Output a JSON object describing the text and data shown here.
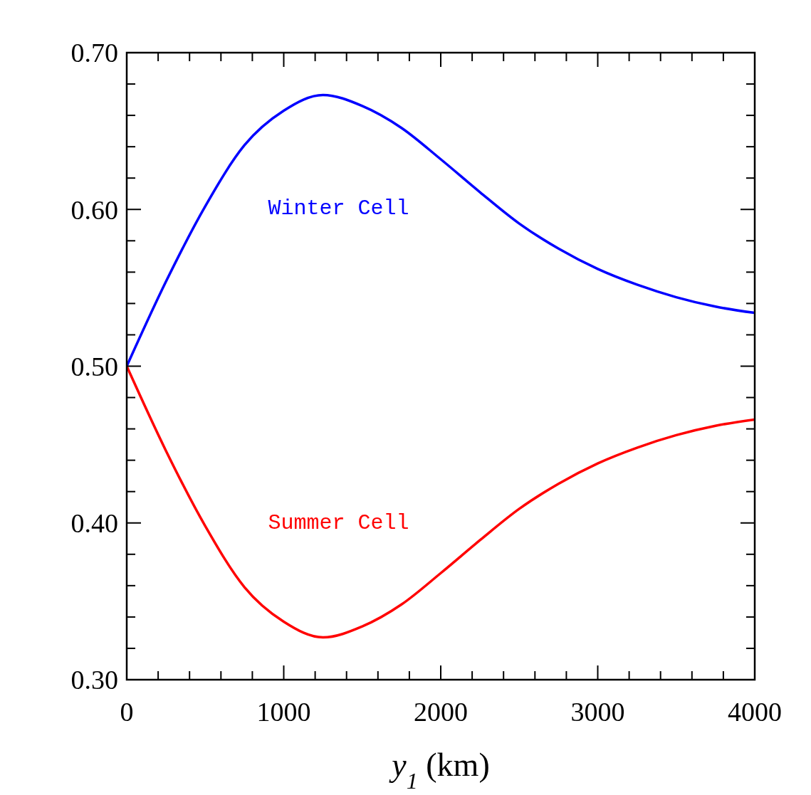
{
  "chart_data": {
    "type": "line",
    "xlabel": "y$_{1}$ (km)",
    "x": [
      0,
      250,
      500,
      750,
      1000,
      1250,
      1500,
      1750,
      2000,
      2250,
      2500,
      2750,
      3000,
      3250,
      3500,
      3750,
      4000
    ],
    "series": [
      {
        "name": "Winter Cell",
        "color": "#0000ff",
        "values": [
          0.5,
          0.554,
          0.602,
          0.641,
          0.663,
          0.673,
          0.666,
          0.652,
          0.632,
          0.611,
          0.591,
          0.575,
          0.562,
          0.552,
          0.544,
          0.538,
          0.534
        ]
      },
      {
        "name": "Summer Cell",
        "color": "#ff0000",
        "values": [
          0.5,
          0.446,
          0.398,
          0.359,
          0.337,
          0.327,
          0.334,
          0.348,
          0.368,
          0.389,
          0.409,
          0.425,
          0.438,
          0.448,
          0.456,
          0.462,
          0.466
        ]
      }
    ],
    "xlim": [
      0,
      4000
    ],
    "ylim": [
      0.3,
      0.7
    ],
    "xticks": [
      0,
      {
        "value": 200,
        "label": null
      },
      {
        "value": 400,
        "label": null
      },
      {
        "value": 600,
        "label": null
      },
      {
        "value": 800,
        "label": null
      },
      1000,
      {
        "value": 1200,
        "label": null
      },
      {
        "value": 1400,
        "label": null
      },
      {
        "value": 1600,
        "label": null
      },
      {
        "value": 1800,
        "label": null
      },
      2000,
      {
        "value": 2200,
        "label": null
      },
      {
        "value": 2400,
        "label": null
      },
      {
        "value": 2600,
        "label": null
      },
      {
        "value": 2800,
        "label": null
      },
      3000,
      {
        "value": 3200,
        "label": null
      },
      {
        "value": 3400,
        "label": null
      },
      {
        "value": 3600,
        "label": null
      },
      {
        "value": 3800,
        "label": null
      },
      4000
    ],
    "yticks": [
      {
        "value": 0.3,
        "label": "0.30"
      },
      {
        "value": 0.32,
        "label": null
      },
      {
        "value": 0.34,
        "label": null
      },
      {
        "value": 0.36,
        "label": null
      },
      {
        "value": 0.38,
        "label": null
      },
      {
        "value": 0.4,
        "label": "0.40"
      },
      {
        "value": 0.42,
        "label": null
      },
      {
        "value": 0.44,
        "label": null
      },
      {
        "value": 0.46,
        "label": null
      },
      {
        "value": 0.48,
        "label": null
      },
      {
        "value": 0.5,
        "label": "0.50"
      },
      {
        "value": 0.52,
        "label": null
      },
      {
        "value": 0.54,
        "label": null
      },
      {
        "value": 0.56,
        "label": null
      },
      {
        "value": 0.58,
        "label": null
      },
      {
        "value": 0.6,
        "label": "0.60"
      },
      {
        "value": 0.62,
        "label": null
      },
      {
        "value": 0.64,
        "label": null
      },
      {
        "value": 0.66,
        "label": null
      },
      {
        "value": 0.68,
        "label": null
      },
      {
        "value": 0.7,
        "label": "0.70"
      }
    ],
    "grid": false,
    "marker": "none",
    "line_style": "solid"
  }
}
